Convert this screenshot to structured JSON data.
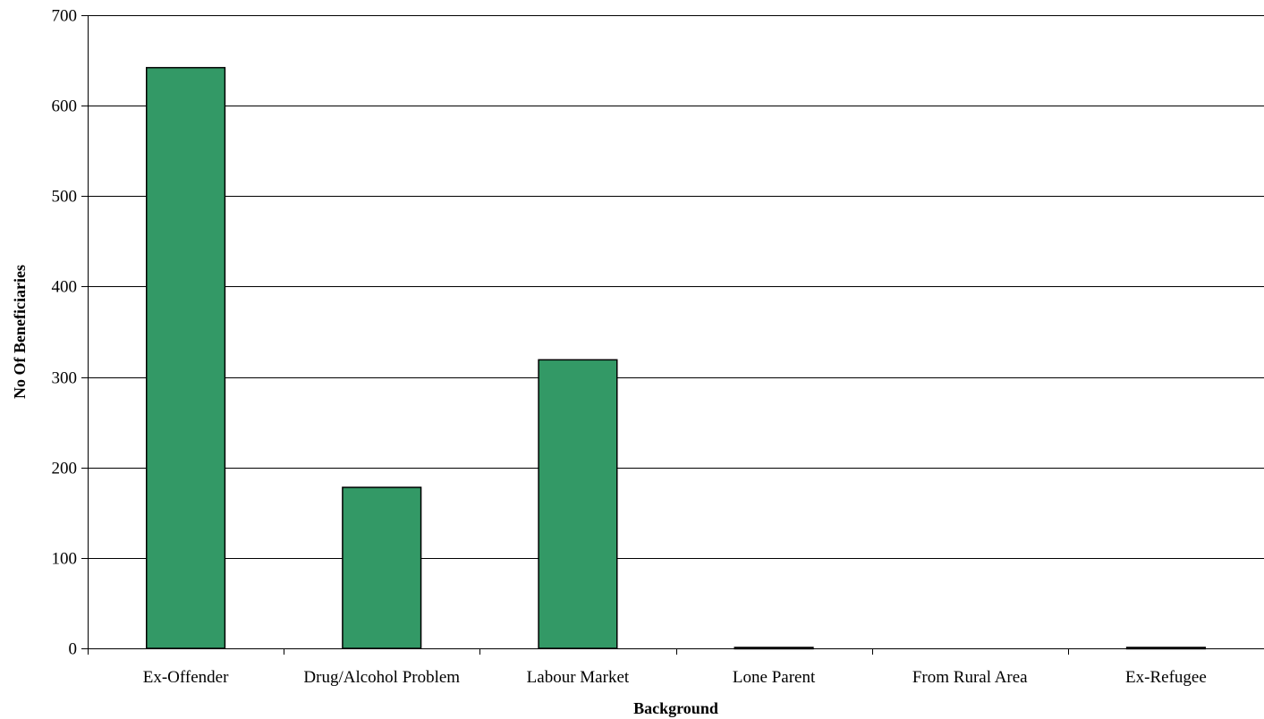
{
  "chart_data": {
    "type": "bar",
    "title": "",
    "xlabel": "Background",
    "ylabel": "No Of Beneficiaries",
    "categories": [
      "Ex-Offender",
      "Drug/Alcohol Problem",
      "Labour Market",
      "Lone Parent",
      "From Rural Area",
      "Ex-Refugee"
    ],
    "values": [
      642,
      178,
      319,
      1,
      0,
      1
    ],
    "ylim": [
      0,
      700
    ],
    "yticks": [
      0,
      100,
      200,
      300,
      400,
      500,
      600,
      700
    ],
    "grid": true,
    "legend": "none",
    "bar_color": "#339966",
    "bar_edge_color": "#000000",
    "grid_color": "#000000"
  }
}
